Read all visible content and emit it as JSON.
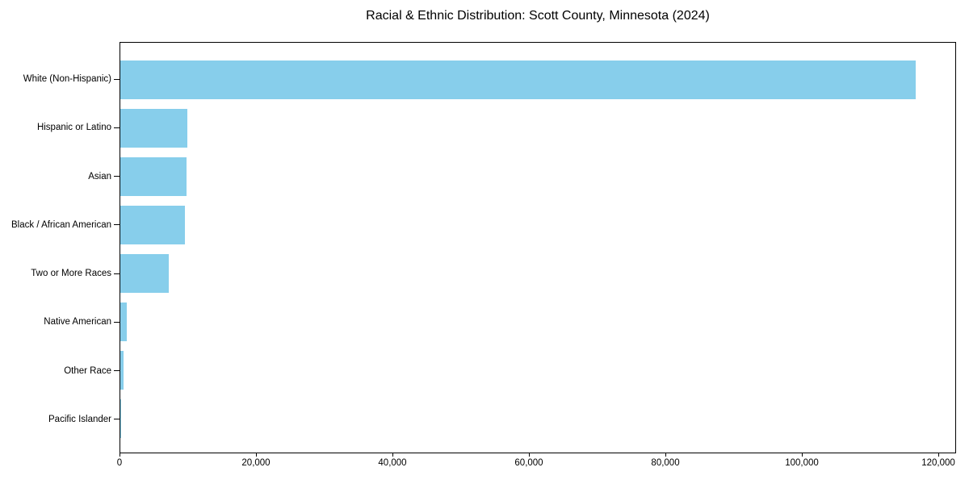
{
  "chart_data": {
    "type": "bar",
    "orientation": "horizontal",
    "title": "Racial & Ethnic Distribution: Scott County, Minnesota (2024)",
    "xlabel": "",
    "ylabel": "",
    "categories": [
      "White (Non-Hispanic)",
      "Hispanic or Latino",
      "Asian",
      "Black / African American",
      "Two or More Races",
      "Native American",
      "Other Race",
      "Pacific Islander"
    ],
    "values": [
      116800,
      9800,
      9700,
      9500,
      7100,
      950,
      500,
      60
    ],
    "bar_color": "#87CEEB",
    "background_color": "#ffffff",
    "spine_color": "#000000",
    "text_color": "#000000",
    "xlim": [
      0,
      122600
    ],
    "xticks": {
      "values": [
        0,
        20000,
        40000,
        60000,
        80000,
        100000,
        120000
      ],
      "labels": [
        "0",
        "20,000",
        "40,000",
        "60,000",
        "80,000",
        "100,000",
        "120,000"
      ]
    },
    "grid": false,
    "legend": "none",
    "sort": "descending"
  }
}
